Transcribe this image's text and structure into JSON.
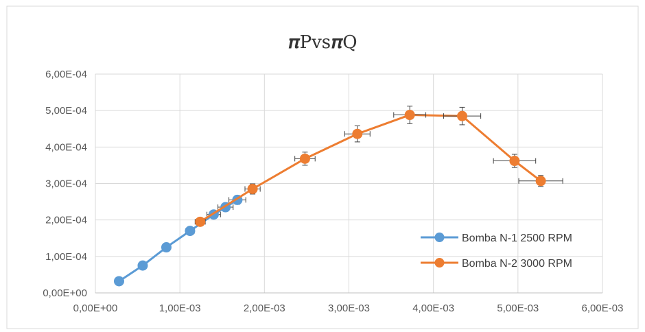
{
  "chart_data": {
    "type": "scatter",
    "title": "𝝅Pvs𝝅Q",
    "xlim": [
      0,
      0.006
    ],
    "ylim": [
      0,
      0.0006
    ],
    "x_ticks": [
      "0,00E+00",
      "1,00E-03",
      "2,00E-03",
      "3,00E-03",
      "4,00E-03",
      "5,00E-03",
      "6,00E-03"
    ],
    "y_ticks": [
      "0,00E+00",
      "1,00E-04",
      "2,00E-04",
      "3,00E-04",
      "4,00E-04",
      "5,00E-04",
      "6,00E-04"
    ],
    "grid": true,
    "legend_position": "bottom-right",
    "series": [
      {
        "name": "Bomba N-1 2500 RPM",
        "color": "#5B9BD5",
        "x": [
          0.00028,
          0.00056,
          0.00084,
          0.00112,
          0.0014,
          0.00154,
          0.00168
        ],
        "y": [
          3.2e-05,
          7.5e-05,
          0.000125,
          0.00017,
          0.000215,
          0.000235,
          0.000255
        ],
        "error_bars": true,
        "x_err": [
          3e-05,
          3e-05,
          3e-05,
          5e-05,
          8e-05,
          9e-05,
          0.0001
        ],
        "y_err": [
          3e-06,
          4e-06,
          6e-06,
          8e-06,
          1e-05,
          1.1e-05,
          1.2e-05
        ]
      },
      {
        "name": "Bomba N-2 3000 RPM",
        "color": "#ED7D31",
        "x": [
          0.00124,
          0.00186,
          0.00248,
          0.0031,
          0.00372,
          0.00434,
          0.00496,
          0.00527
        ],
        "y": [
          0.000195,
          0.000285,
          0.000368,
          0.000436,
          0.000488,
          0.000485,
          0.000362,
          0.000307
        ],
        "error_bars": true,
        "x_err": [
          6e-05,
          9e-05,
          0.00012,
          0.00015,
          0.00019,
          0.00022,
          0.00025,
          0.00026
        ],
        "y_err": [
          1e-05,
          1.4e-05,
          1.8e-05,
          2.2e-05,
          2.4e-05,
          2.4e-05,
          1.8e-05,
          1.5e-05
        ]
      }
    ]
  }
}
